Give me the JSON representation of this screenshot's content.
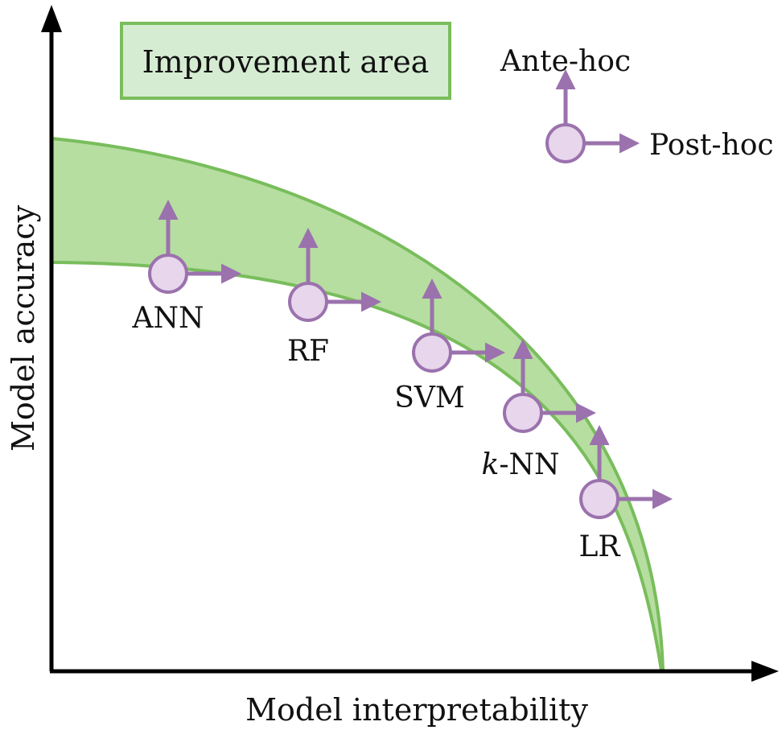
{
  "axes": {
    "x_label": "Model interpretability",
    "y_label": "Model accuracy"
  },
  "legend": {
    "improvement_area_label": "Improvement area",
    "ante_hoc_label": "Ante-hoc",
    "post_hoc_label": "Post-hoc"
  },
  "models": [
    {
      "id": "ann",
      "label": "ANN"
    },
    {
      "id": "rf",
      "label": "RF"
    },
    {
      "id": "svm",
      "label": "SVM"
    },
    {
      "id": "knn",
      "label_italic": "k",
      "label_rest": "-NN"
    },
    {
      "id": "lr",
      "label": "LR"
    }
  ],
  "colors": {
    "band_fill": "#b6dea0",
    "band_stroke": "#79bd5c",
    "legend_box_fill": "#d5ecd2",
    "node_fill": "#e7d6ec",
    "node_stroke": "#9b72ad",
    "axis": "#000000"
  }
}
